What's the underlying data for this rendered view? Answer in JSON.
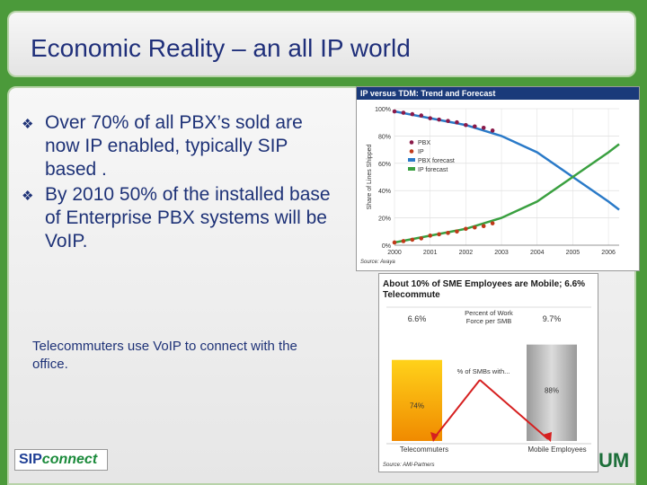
{
  "slide": {
    "title": "Economic Reality – an all IP world",
    "bullets": [
      "Over 70% of all PBX’s sold are now IP enabled, typically SIP based .",
      "By 2010 50% of the installed base of Enterprise PBX systems will be VoIP."
    ],
    "bullet_icon": "diamond-outline-icon",
    "note": "Telecommuters use VoIP to connect with the office."
  },
  "logos": {
    "sip_part": "SIP",
    "connect_part": "connect",
    "right_fragment": "UM"
  },
  "colors": {
    "accent_green": "#4b9a3a",
    "title_blue": "#1f2f7a",
    "pbx": "#8a1a4a",
    "ip": "#c03a1a",
    "pbx_forecast": "#2a7ac8",
    "ip_forecast": "#3aa040"
  },
  "chart_data": [
    {
      "type": "line",
      "title": "IP versus TDM: Trend and Forecast",
      "ylabel": "Share of Lines Shipped",
      "ylim": [
        0,
        100
      ],
      "y_ticks": [
        "0%",
        "20%",
        "40%",
        "60%",
        "80%",
        "100%"
      ],
      "x_ticks": [
        "2000",
        "2001",
        "2002",
        "2003",
        "2004",
        "2005",
        "2006"
      ],
      "xlim": [
        2000,
        2006.3
      ],
      "legend": [
        "PBX",
        "IP",
        "PBX forecast",
        "IP forecast"
      ],
      "legend_position": "center-left",
      "source": "Source: Avaya",
      "series": [
        {
          "name": "PBX",
          "style": "dots",
          "x": [
            2000,
            2000.25,
            2000.5,
            2000.75,
            2001,
            2001.25,
            2001.5,
            2001.75,
            2002,
            2002.25,
            2002.5,
            2002.75
          ],
          "y": [
            98,
            97,
            96,
            95,
            93,
            92,
            91,
            90,
            88,
            87,
            86,
            84
          ]
        },
        {
          "name": "IP",
          "style": "dots",
          "x": [
            2000,
            2000.25,
            2000.5,
            2000.75,
            2001,
            2001.25,
            2001.5,
            2001.75,
            2002,
            2002.25,
            2002.5,
            2002.75
          ],
          "y": [
            2,
            3,
            4,
            5,
            7,
            8,
            9,
            10,
            12,
            13,
            14,
            16
          ]
        },
        {
          "name": "PBX forecast",
          "style": "line",
          "x": [
            2000,
            2001,
            2002,
            2003,
            2004,
            2005,
            2006,
            2006.3
          ],
          "y": [
            98,
            93,
            88,
            80,
            68,
            50,
            32,
            26
          ]
        },
        {
          "name": "IP forecast",
          "style": "line",
          "x": [
            2000,
            2001,
            2002,
            2003,
            2004,
            2005,
            2006,
            2006.3
          ],
          "y": [
            2,
            7,
            12,
            20,
            32,
            50,
            68,
            74
          ]
        }
      ]
    },
    {
      "type": "bar",
      "title": "About 10% of SME Employees are Mobile; 6.6% Telecommute",
      "categories": [
        "Telecommuters",
        "Mobile Employees"
      ],
      "values": [
        6.6,
        9.7
      ],
      "value_labels": [
        "6.6%",
        "9.7%"
      ],
      "ylabel_center": "Percent of Work Force per SMB",
      "inner_values": [
        74,
        88
      ],
      "inner_labels": [
        "74%",
        "88%"
      ],
      "annotation": "% of SMBs with...",
      "source": "Source: AMI-Partners"
    }
  ]
}
